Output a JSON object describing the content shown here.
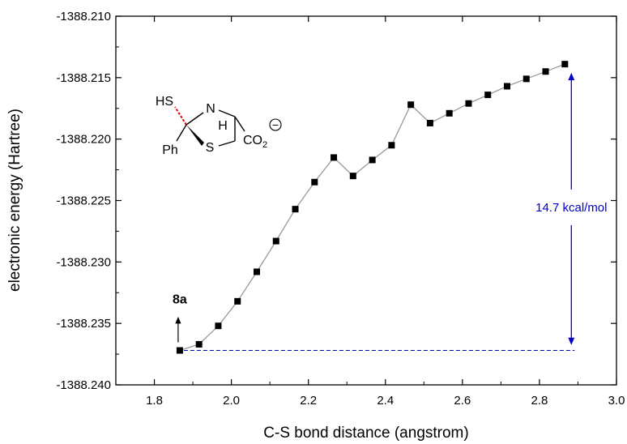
{
  "chart_data": {
    "type": "line",
    "xlabel": "C-S bond distance (angstrom)",
    "ylabel": "electronic energy (Hartree)",
    "xlim": [
      1.7,
      3.0
    ],
    "ylim": [
      -1388.24,
      -1388.21
    ],
    "xticks": [
      "1.8",
      "2.0",
      "2.2",
      "2.4",
      "2.6",
      "2.8",
      "3.0"
    ],
    "yticks": [
      "-1388.210",
      "-1388.215",
      "-1388.220",
      "-1388.225",
      "-1388.230",
      "-1388.235",
      "-1388.240"
    ],
    "series": [
      {
        "x": [
          1.866,
          1.916,
          1.966,
          2.016,
          2.066,
          2.116,
          2.166,
          2.216,
          2.266,
          2.316,
          2.366,
          2.416,
          2.466,
          2.516,
          2.566,
          2.616,
          2.666,
          2.716,
          2.766,
          2.816,
          2.866
        ],
        "y": [
          -1388.2372,
          -1388.2367,
          -1388.2352,
          -1388.2332,
          -1388.2308,
          -1388.2283,
          -1388.2257,
          -1388.2235,
          -1388.2215,
          -1388.223,
          -1388.2217,
          -1388.2205,
          -1388.2172,
          -1388.2187,
          -1388.2179,
          -1388.2171,
          -1388.2164,
          -1388.2157,
          -1388.2151,
          -1388.2145,
          -1388.2139
        ]
      }
    ],
    "annotations": {
      "point_label": "8a",
      "energy_difference": "14.7 kcal/mol"
    },
    "structure_labels": {
      "thiol": "HS",
      "nitrogen": "N",
      "hydrogen": "H",
      "sulfur": "S",
      "phenyl": "Ph",
      "carboxylate": "CO",
      "carboxylate_subscript": "2",
      "charge": "−"
    },
    "colors": {
      "series_line": "#9a9a9a",
      "marker": "#000000",
      "annotation": "#0000cc",
      "dashed_bond": "#e00000"
    }
  }
}
